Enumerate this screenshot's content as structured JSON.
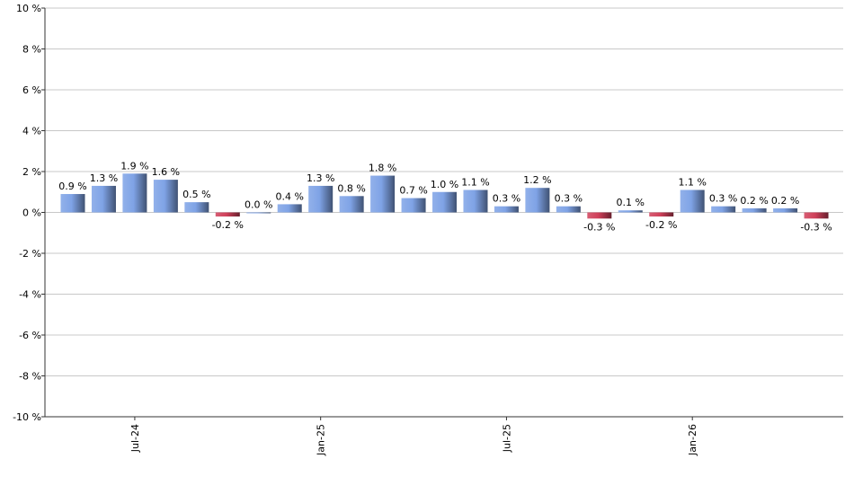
{
  "chart_data": {
    "type": "bar",
    "categories": [
      null,
      null,
      "Jul-24",
      null,
      null,
      null,
      null,
      null,
      "Jan-25",
      null,
      null,
      null,
      null,
      null,
      "Jul-25",
      null,
      null,
      null,
      null,
      null,
      "Jan-26",
      null,
      null,
      null,
      null
    ],
    "values": [
      0.9,
      1.3,
      1.9,
      1.6,
      0.5,
      -0.2,
      0.0,
      0.4,
      1.3,
      0.8,
      1.8,
      0.7,
      1.0,
      1.1,
      0.3,
      1.2,
      0.3,
      -0.3,
      0.1,
      -0.2,
      1.1,
      0.3,
      0.2,
      0.2,
      -0.3
    ],
    "value_labels": [
      "0.9 %",
      "1.3 %",
      "1.9 %",
      "1.6 %",
      "0.5 %",
      "-0.2 %",
      "0.0 %",
      "0.4 %",
      "1.3 %",
      "0.8 %",
      "1.8 %",
      "0.7 %",
      "1.0 %",
      "1.1 %",
      "0.3 %",
      "1.2 %",
      "0.3 %",
      "-0.3 %",
      "0.1 %",
      "-0.2 %",
      "1.1 %",
      "0.3 %",
      "0.2 %",
      "0.2 %",
      "-0.3 %"
    ],
    "color": "#7fa3e6",
    "negative_color": "#d0405a",
    "ylim": [
      -10,
      10
    ],
    "yticks": [
      {
        "value": -10,
        "label": "-10 %"
      },
      {
        "value": -8,
        "label": "-8 %"
      },
      {
        "value": -6,
        "label": "-6 %"
      },
      {
        "value": -4,
        "label": "-4 %"
      },
      {
        "value": -2,
        "label": "-2 %"
      },
      {
        "value": 0,
        "label": "0 %"
      },
      {
        "value": 2,
        "label": "2 %"
      },
      {
        "value": 4,
        "label": "4 %"
      },
      {
        "value": 6,
        "label": "6 %"
      },
      {
        "value": 8,
        "label": "8 %"
      },
      {
        "value": 10,
        "label": "10 %"
      }
    ],
    "grid": true
  }
}
